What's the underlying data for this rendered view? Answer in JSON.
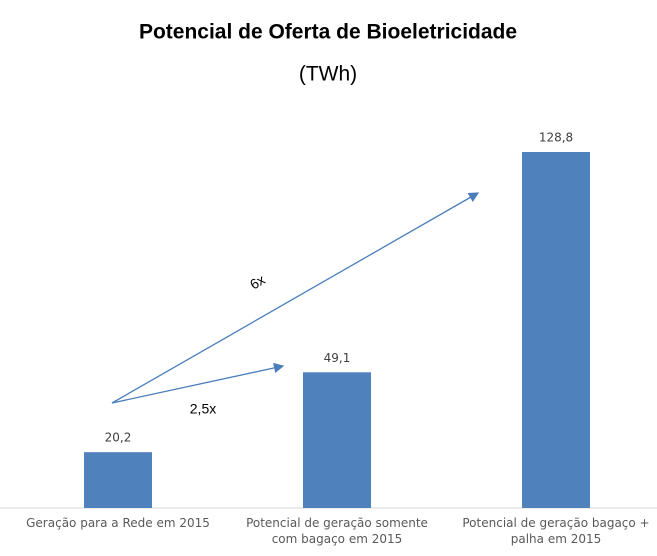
{
  "chart_data": {
    "type": "bar",
    "title": "Potencial de Oferta de Bioeletricidade",
    "subtitle": "(TWh)",
    "categories": [
      "Geração para a Rede em 2015",
      "Potencial de geração somente com bagaço em 2015",
      "Potencial de geração bagaço + palha em 2015"
    ],
    "values": [
      20.2,
      49.1,
      128.8
    ],
    "value_labels": [
      "20,2",
      "49,1",
      "128,8"
    ],
    "color": "#4f81bd",
    "annotations": [
      "6x",
      "2,5x"
    ]
  }
}
